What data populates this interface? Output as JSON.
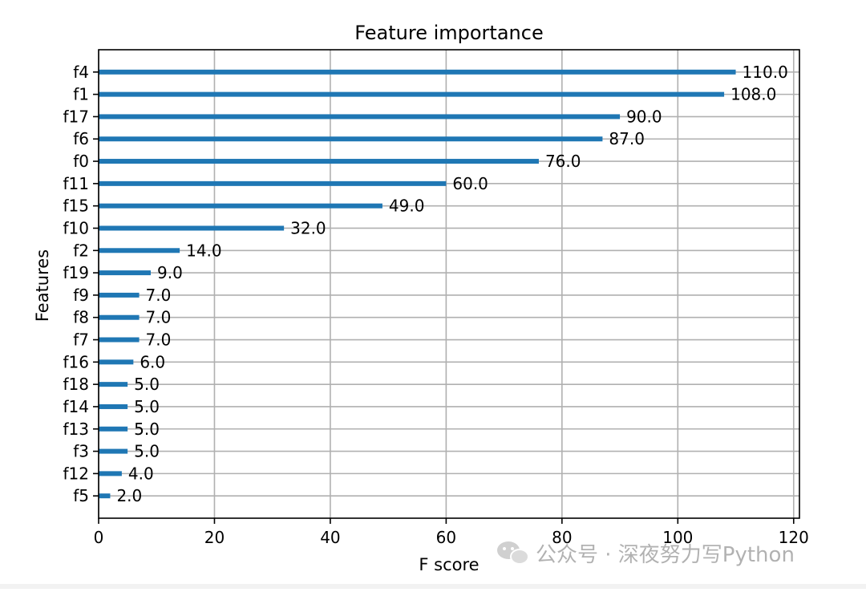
{
  "chart_data": {
    "type": "bar",
    "orientation": "horizontal",
    "title": "Feature importance",
    "xlabel": "F score",
    "ylabel": "Features",
    "xlim": [
      0,
      121
    ],
    "xticks": [
      0,
      20,
      40,
      60,
      80,
      100,
      120
    ],
    "grid": true,
    "bar_color": "#1f77b4",
    "categories": [
      "f4",
      "f1",
      "f17",
      "f6",
      "f0",
      "f11",
      "f15",
      "f10",
      "f2",
      "f19",
      "f9",
      "f8",
      "f7",
      "f16",
      "f18",
      "f14",
      "f13",
      "f3",
      "f12",
      "f5"
    ],
    "values": [
      110.0,
      108.0,
      90.0,
      87.0,
      76.0,
      60.0,
      49.0,
      32.0,
      14.0,
      9.0,
      7.0,
      7.0,
      7.0,
      6.0,
      5.0,
      5.0,
      5.0,
      5.0,
      4.0,
      2.0
    ],
    "value_labels": [
      "110.0",
      "108.0",
      "90.0",
      "87.0",
      "76.0",
      "60.0",
      "49.0",
      "32.0",
      "14.0",
      "9.0",
      "7.0",
      "7.0",
      "7.0",
      "6.0",
      "5.0",
      "5.0",
      "5.0",
      "5.0",
      "4.0",
      "2.0"
    ]
  },
  "watermark": {
    "text": "公众号 · 深夜努力写Python",
    "icon": "wechat-icon"
  }
}
